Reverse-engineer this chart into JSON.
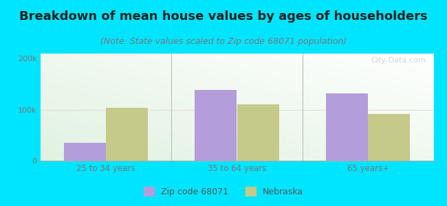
{
  "title": "Breakdown of mean house values by ages of householders",
  "subtitle": "(Note: State values scaled to Zip code 68071 population)",
  "categories": [
    "25 to 34 years",
    "35 to 64 years",
    "65 years+"
  ],
  "zip_values": [
    35000,
    138000,
    132000
  ],
  "state_values": [
    103000,
    110000,
    91000
  ],
  "ylim": [
    0,
    210000
  ],
  "ytick_labels": [
    "0",
    "100k",
    "200k"
  ],
  "ytick_vals": [
    0,
    100000,
    200000
  ],
  "zip_color": "#b39ddb",
  "state_color": "#c5c98a",
  "background_color": "#00e5ff",
  "legend_zip_label": "Zip code 68071",
  "legend_state_label": "Nebraska",
  "bar_width": 0.32,
  "title_fontsize": 13,
  "subtitle_fontsize": 9,
  "watermark": "City-Data.com"
}
